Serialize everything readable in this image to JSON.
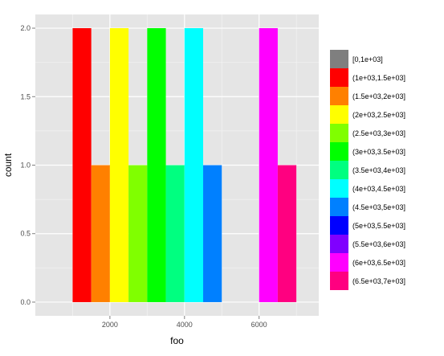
{
  "chart_data": {
    "type": "bar",
    "subtype": "histogram",
    "xlabel": "foo",
    "ylabel": "count",
    "xlim": [
      0,
      7600
    ],
    "ylim": [
      -0.1,
      2.1
    ],
    "x_ticks": [
      {
        "value": 2000,
        "label": "2000"
      },
      {
        "value": 4000,
        "label": "4000"
      },
      {
        "value": 6000,
        "label": "6000"
      }
    ],
    "y_ticks": [
      {
        "value": 0.0,
        "label": "0.0"
      },
      {
        "value": 0.5,
        "label": "0.5"
      },
      {
        "value": 1.0,
        "label": "1.0"
      },
      {
        "value": 1.5,
        "label": "1.5"
      },
      {
        "value": 2.0,
        "label": "2.0"
      }
    ],
    "grid": true,
    "background": "#e5e5e5",
    "legend_position": "right",
    "bins": [
      {
        "label": "[0,1e+03]",
        "start": 0,
        "end": 1000,
        "count": 0,
        "color": "#7f7f7f"
      },
      {
        "label": "(1e+03,1.5e+03]",
        "start": 1000,
        "end": 1500,
        "count": 2,
        "color": "#ff0000"
      },
      {
        "label": "(1.5e+03,2e+03]",
        "start": 1500,
        "end": 2000,
        "count": 1,
        "color": "#ff8000"
      },
      {
        "label": "(2e+03,2.5e+03]",
        "start": 2000,
        "end": 2500,
        "count": 2,
        "color": "#ffff00"
      },
      {
        "label": "(2.5e+03,3e+03]",
        "start": 2500,
        "end": 3000,
        "count": 1,
        "color": "#80ff00"
      },
      {
        "label": "(3e+03,3.5e+03]",
        "start": 3000,
        "end": 3500,
        "count": 2,
        "color": "#00ff00"
      },
      {
        "label": "(3.5e+03,4e+03]",
        "start": 3500,
        "end": 4000,
        "count": 1,
        "color": "#00ff80"
      },
      {
        "label": "(4e+03,4.5e+03]",
        "start": 4000,
        "end": 4500,
        "count": 2,
        "color": "#00ffff"
      },
      {
        "label": "(4.5e+03,5e+03]",
        "start": 4500,
        "end": 5000,
        "count": 1,
        "color": "#0080ff"
      },
      {
        "label": "(5e+03,5.5e+03]",
        "start": 5000,
        "end": 5500,
        "count": 0,
        "color": "#0000ff"
      },
      {
        "label": "(5.5e+03,6e+03]",
        "start": 5500,
        "end": 6000,
        "count": 0,
        "color": "#8000ff"
      },
      {
        "label": "(6e+03,6.5e+03]",
        "start": 6000,
        "end": 6500,
        "count": 2,
        "color": "#ff00ff"
      },
      {
        "label": "(6.5e+03,7e+03]",
        "start": 6500,
        "end": 7000,
        "count": 1,
        "color": "#ff0080"
      }
    ]
  }
}
